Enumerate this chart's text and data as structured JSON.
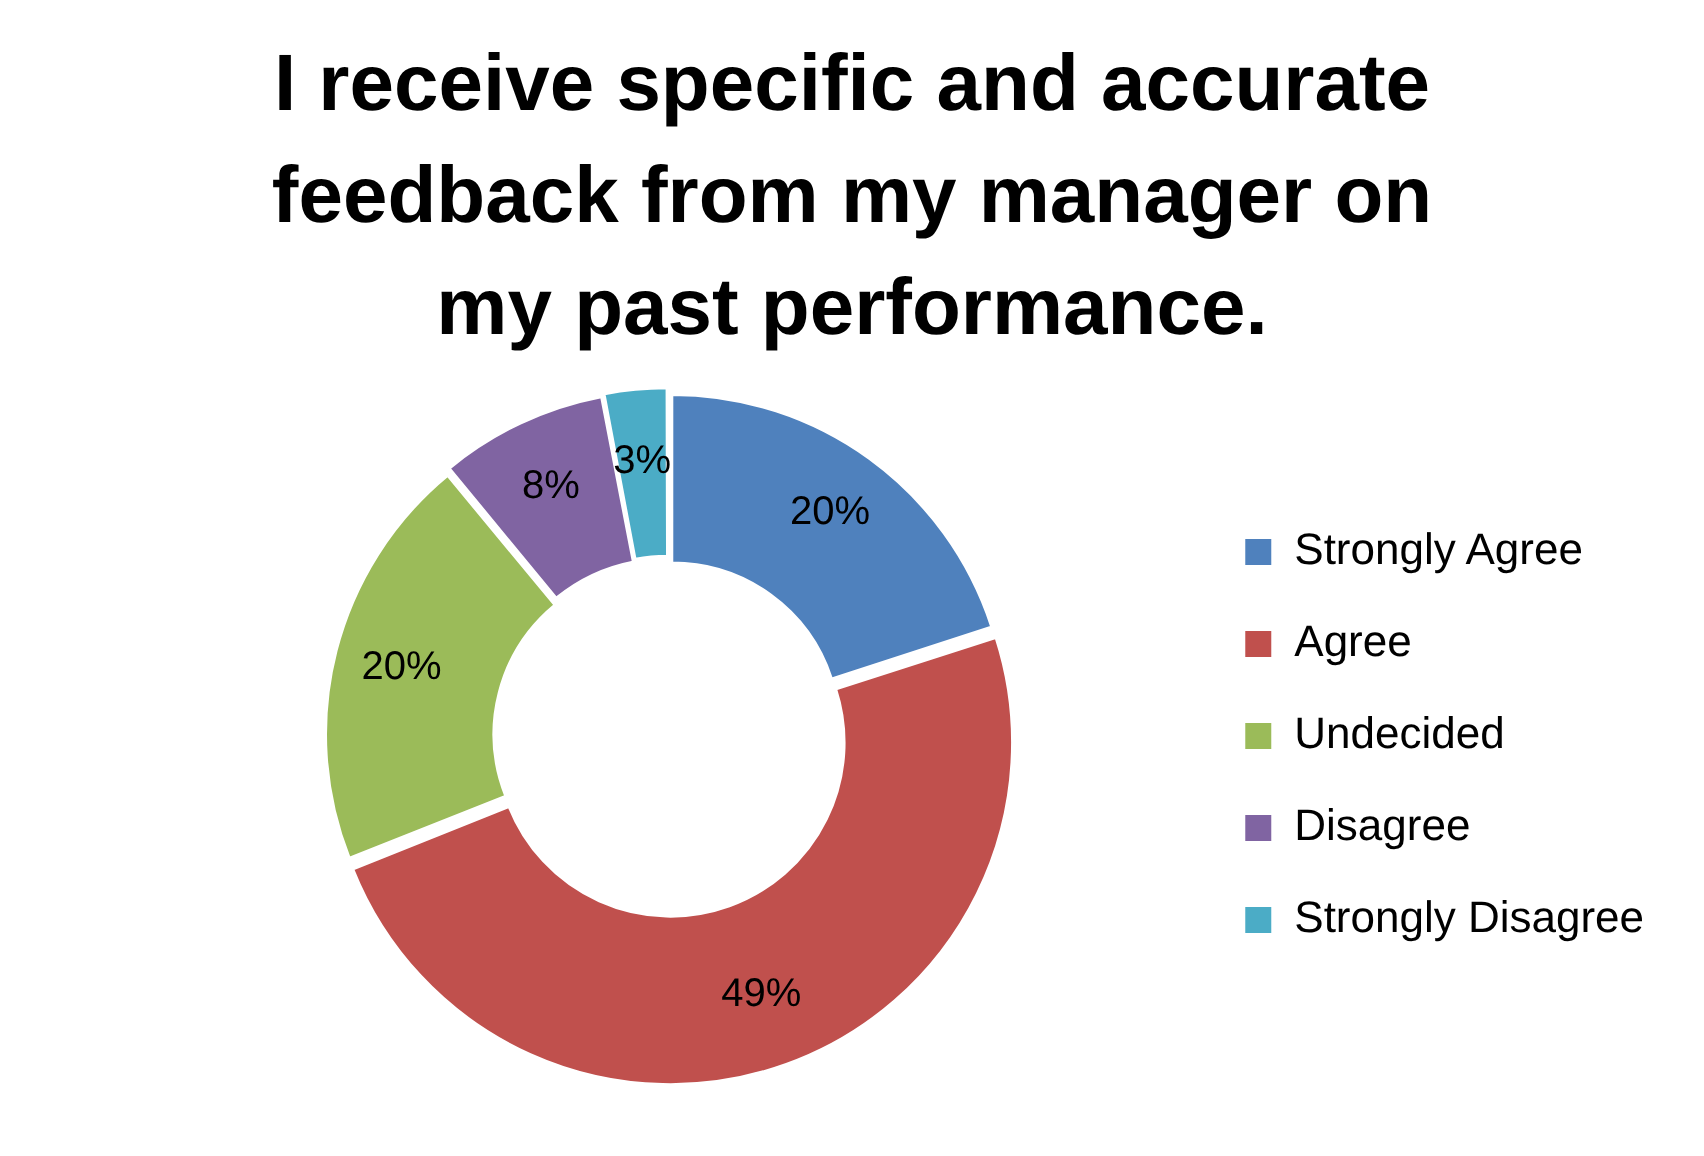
{
  "chart_data": {
    "type": "donut",
    "title": "I receive specific and accurate feedback from my manager on my past performance.",
    "categories": [
      "Strongly Agree",
      "Agree",
      "Undecided",
      "Disagree",
      "Strongly Disagree"
    ],
    "values": [
      20,
      49,
      20,
      8,
      3
    ],
    "value_labels": [
      "20%",
      "49%",
      "20%",
      "8%",
      "3%"
    ],
    "colors": [
      "#4f81bd",
      "#c0504d",
      "#9bbb59",
      "#8064a2",
      "#4bacc6"
    ],
    "legend": "right"
  }
}
